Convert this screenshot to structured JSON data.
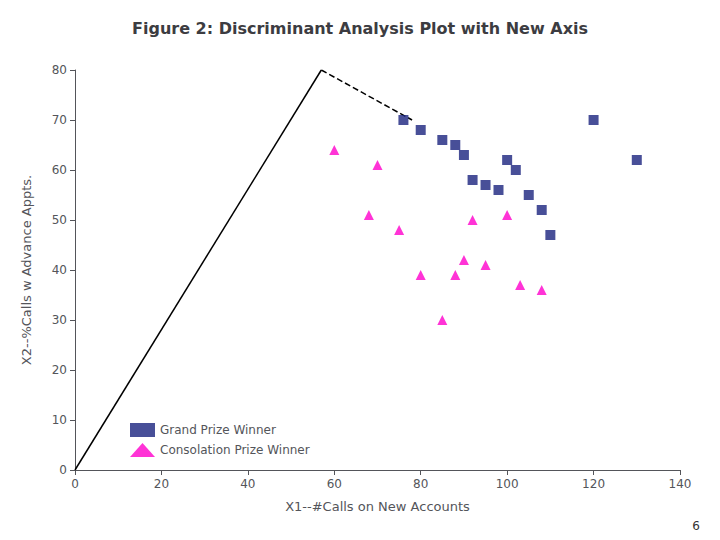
{
  "chart_data": {
    "type": "scatter",
    "title": "Figure 2: Discriminant Analysis Plot with New Axis",
    "xlabel": "X1--#Calls on New Accounts",
    "ylabel": "X2--%Calls w Advance Appts.",
    "xlim": [
      0,
      140
    ],
    "ylim": [
      0,
      80
    ],
    "xticks": [
      0,
      20,
      40,
      60,
      80,
      100,
      120,
      140
    ],
    "yticks": [
      0,
      10,
      20,
      30,
      40,
      50,
      60,
      70,
      80
    ],
    "grid": false,
    "legend": "lower left",
    "annotations": [
      {
        "text": "6"
      }
    ],
    "series": [
      {
        "name": "Grand Prize Winner",
        "type": "scatter",
        "marker": "square",
        "color": "#1a237e",
        "x": [
          76,
          80,
          85,
          88,
          90,
          92,
          95,
          98,
          100,
          102,
          105,
          108,
          110,
          120,
          130
        ],
        "values": [
          70,
          68,
          66,
          65,
          63,
          58,
          57,
          56,
          62,
          60,
          55,
          52,
          47,
          70,
          62
        ]
      },
      {
        "name": "Consolation Prize Winner",
        "type": "scatter",
        "marker": "triangle",
        "color": "#ff00cc",
        "x": [
          60,
          68,
          70,
          75,
          80,
          85,
          88,
          90,
          92,
          95,
          100,
          103,
          108
        ],
        "values": [
          64,
          51,
          61,
          48,
          39,
          30,
          39,
          42,
          50,
          41,
          51,
          37,
          36
        ]
      },
      {
        "type": "line",
        "line_style": "solid",
        "color": "#000000",
        "x": [
          0,
          57
        ],
        "values": [
          0,
          80
        ]
      },
      {
        "type": "line",
        "line_style": "dashed",
        "color": "#000000",
        "x": [
          57,
          78
        ],
        "values": [
          80,
          70
        ]
      }
    ]
  }
}
